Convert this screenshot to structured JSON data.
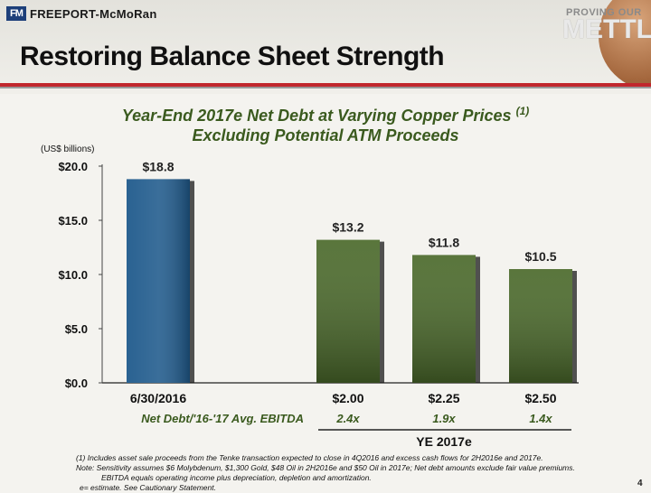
{
  "brand": {
    "logo_mark": "FM",
    "logo_text": "FREEPORT-McMoRan",
    "tagline_top": "PROVING OUR",
    "tagline_big": "METTLE"
  },
  "slide": {
    "title": "Restoring Balance Sheet Strength",
    "subtitle_line1": "Year-End 2017e Net Debt at Varying Copper Prices",
    "subtitle_footnote_mark": "(1)",
    "subtitle_line2": "Excluding Potential ATM Proceeds",
    "units": "(US$ billions)",
    "page_number": "4"
  },
  "chart_data": {
    "type": "bar",
    "categories": [
      "6/30/2016",
      "$2.00",
      "$2.25",
      "$2.50"
    ],
    "values": [
      18.8,
      13.2,
      11.8,
      10.5
    ],
    "value_labels": [
      "$18.8",
      "$13.2",
      "$11.8",
      "$10.5"
    ],
    "bar_colors": [
      "#1f5a8c",
      "#4b6a2b",
      "#4b6a2b",
      "#4b6a2b"
    ],
    "ylim": [
      0,
      20
    ],
    "yticks": [
      0,
      5,
      10,
      15,
      20
    ],
    "ytick_labels": [
      "$0.0",
      "$5.0",
      "$10.0",
      "$15.0",
      "$20.0"
    ],
    "ratio_row_label": "Net Debt/'16-'17 Avg. EBITDA",
    "ratios": [
      "",
      "2.4x",
      "1.9x",
      "1.4x"
    ],
    "group_label": "YE 2017e",
    "grid": false
  },
  "footnotes": {
    "line1": "(1) Includes asset sale proceeds from the Tenke transaction expected to close in 4Q2016 and excess cash flows for 2H2016e and 2017e.",
    "line2": "Note: Sensitivity assumes $6 Molybdenum, $1,300 Gold, $48 Oil in 2H2016e and $50 Oil in 2017e; Net debt amounts exclude fair value premiums.",
    "line3": "EBITDA equals operating income plus depreciation, depletion and amortization.",
    "line4": "e= estimate. See Cautionary Statement."
  }
}
